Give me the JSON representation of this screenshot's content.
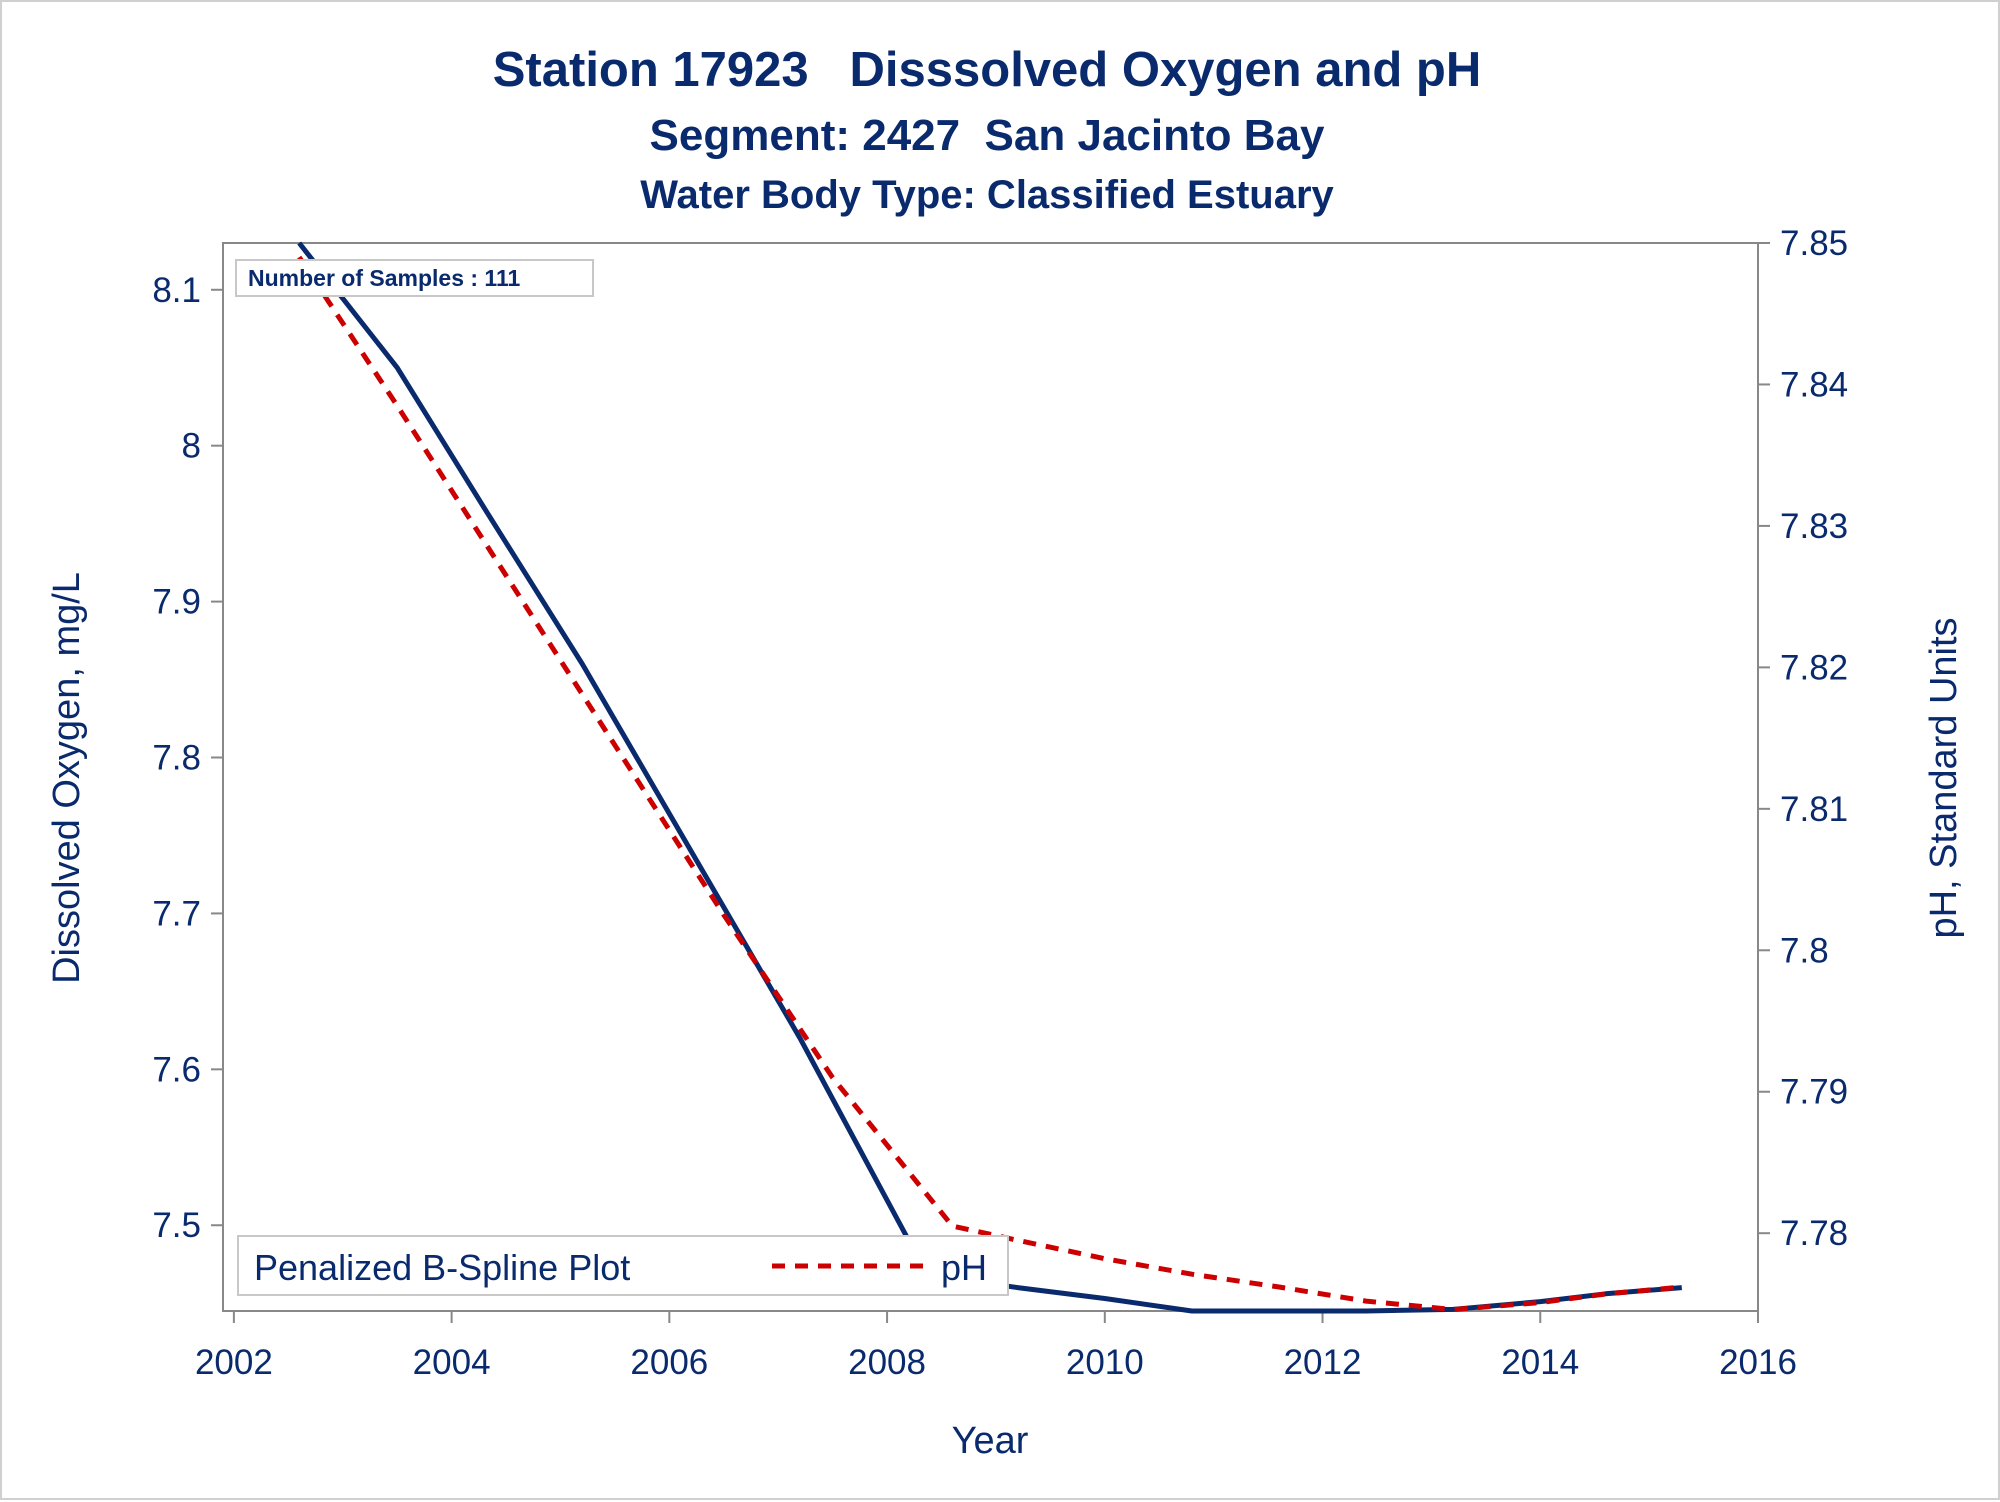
{
  "titles": {
    "line1": "Station 17923   Disssolved Oxygen and pH",
    "line2": "Segment: 2427  San Jacinto Bay",
    "line3": "Water Body Type: Classified Estuary"
  },
  "inset_label": "Number of Samples : 111",
  "legend": {
    "title": "Penalized B-Spline Plot",
    "entries": [
      "pH"
    ]
  },
  "colors": {
    "text": "#0a2a6e",
    "do_line": "#0a2a6e",
    "ph_line": "#cc0000",
    "axis": "#888888"
  },
  "chart_data": {
    "type": "line",
    "title": "Station 17923   Disssolved Oxygen and pH",
    "xlabel": "Year",
    "ylabel": "Dissolved Oxygen, mg/L",
    "y2label": "pH, Standard Units",
    "xlim": [
      2001.9,
      2016.0
    ],
    "ylim": [
      7.445,
      8.13
    ],
    "y2lim": [
      7.7745,
      7.85
    ],
    "xticks": [
      2002,
      2004,
      2006,
      2008,
      2010,
      2012,
      2014,
      2016
    ],
    "yticks": [
      7.5,
      7.6,
      7.7,
      7.8,
      7.9,
      8,
      8.1
    ],
    "ytick_labels": [
      "7.5",
      "7.6",
      "7.7",
      "7.8",
      "7.9",
      "8",
      "8.1"
    ],
    "y2ticks": [
      7.78,
      7.79,
      7.8,
      7.81,
      7.82,
      7.83,
      7.84,
      7.85
    ],
    "y2tick_labels": [
      "7.78",
      "7.79",
      "7.8",
      "7.81",
      "7.82",
      "7.83",
      "7.84",
      "7.85"
    ],
    "grid": false,
    "legend_position": "bottom-left",
    "series": [
      {
        "axis": "y",
        "style": "solid",
        "x": [
          2002.6,
          2003.5,
          2004.3,
          2005.2,
          2006.2,
          2007.2,
          2008.2,
          2008.6,
          2009.2,
          2010.0,
          2010.8,
          2011.6,
          2012.4,
          2013.2,
          2014.0,
          2014.6,
          2015.3
        ],
        "values": [
          8.13,
          8.05,
          7.96,
          7.86,
          7.74,
          7.62,
          7.49,
          7.466,
          7.46,
          7.453,
          7.445,
          7.445,
          7.445,
          7.446,
          7.451,
          7.456,
          7.46
        ]
      },
      {
        "name": "pH",
        "axis": "y2",
        "style": "dashed",
        "x": [
          2002.6,
          2003.5,
          2004.5,
          2005.5,
          2006.5,
          2007.5,
          2008.6,
          2009.2,
          2010.0,
          2010.8,
          2011.6,
          2012.4,
          2013.2,
          2014.0,
          2014.6,
          2015.3
        ],
        "values": [
          7.849,
          7.8385,
          7.8265,
          7.8145,
          7.8025,
          7.791,
          7.7805,
          7.7795,
          7.7782,
          7.7771,
          7.7762,
          7.7752,
          7.7746,
          7.7751,
          7.7757,
          7.7762
        ]
      }
    ]
  }
}
